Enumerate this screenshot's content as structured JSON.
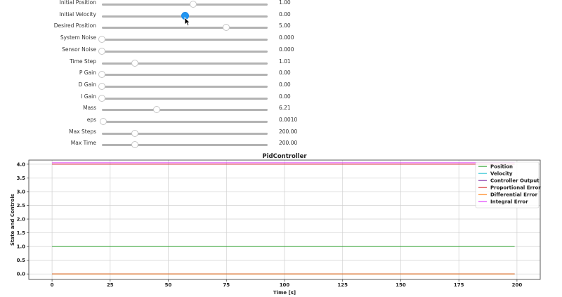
{
  "sliders": [
    {
      "label": "Initial Position",
      "value": "1.00",
      "fraction": 0.55,
      "active": false
    },
    {
      "label": "Initial Velocity",
      "value": "0.00",
      "fraction": 0.5,
      "active": true
    },
    {
      "label": "Desired Position",
      "value": "5.00",
      "fraction": 0.75,
      "active": false
    },
    {
      "label": "System Noise",
      "value": "0.000",
      "fraction": 0.0,
      "active": false
    },
    {
      "label": "Sensor Noise",
      "value": "0.000",
      "fraction": 0.0,
      "active": false
    },
    {
      "label": "Time Step",
      "value": "1.01",
      "fraction": 0.2,
      "active": false
    },
    {
      "label": "P Gain",
      "value": "0.00",
      "fraction": 0.0,
      "active": false
    },
    {
      "label": "D Gain",
      "value": "0.00",
      "fraction": 0.0,
      "active": false
    },
    {
      "label": "I Gain",
      "value": "0.00",
      "fraction": 0.0,
      "active": false
    },
    {
      "label": "Mass",
      "value": "6.21",
      "fraction": 0.33,
      "active": false
    },
    {
      "label": "eps",
      "value": "0.0010",
      "fraction": 0.01,
      "active": false
    },
    {
      "label": "Max Steps",
      "value": "200.00",
      "fraction": 0.2,
      "active": false
    },
    {
      "label": "Max Time",
      "value": "200.00",
      "fraction": 0.2,
      "active": false
    }
  ],
  "chart_data": {
    "type": "line",
    "title": "PidController",
    "xlabel": "Time [s]",
    "ylabel": "State and Controls",
    "xlim": [
      -10,
      210
    ],
    "ylim": [
      -0.2,
      4.15
    ],
    "xticks": [
      0,
      25,
      50,
      75,
      100,
      125,
      150,
      175,
      200
    ],
    "xtick_labels": [
      "0",
      "25",
      "50",
      "75",
      "100",
      "125",
      "150",
      "175",
      "200"
    ],
    "yticks": [
      0.0,
      0.5,
      1.0,
      1.5,
      2.0,
      2.5,
      3.0,
      3.5,
      4.0
    ],
    "ytick_labels": [
      "0.0",
      "0.5",
      "1.0",
      "1.5",
      "2.0",
      "2.5",
      "3.0",
      "3.5",
      "4.0"
    ],
    "grid": true,
    "legend_position": "top-right",
    "series": [
      {
        "name": "Position",
        "color": "#2ca02c",
        "x": [
          0,
          199
        ],
        "y": [
          1.0,
          1.0
        ]
      },
      {
        "name": "Velocity",
        "color": "#17becf",
        "x": [
          0,
          199
        ],
        "y": [
          0.0,
          0.0
        ]
      },
      {
        "name": "Controller Output",
        "color": "#7b1fa2",
        "x": [
          0,
          199
        ],
        "y": [
          0.0,
          0.0
        ]
      },
      {
        "name": "Proportional Error",
        "color": "#d62728",
        "x": [
          0,
          199
        ],
        "y": [
          4.0,
          4.0
        ]
      },
      {
        "name": "Differential Error",
        "color": "#ff7f0e",
        "x": [
          0,
          199
        ],
        "y": [
          0.0,
          0.0
        ]
      },
      {
        "name": "Integral Error",
        "color": "#e040fb",
        "x": [
          0,
          199
        ],
        "y": [
          4.05,
          4.05
        ]
      }
    ]
  }
}
